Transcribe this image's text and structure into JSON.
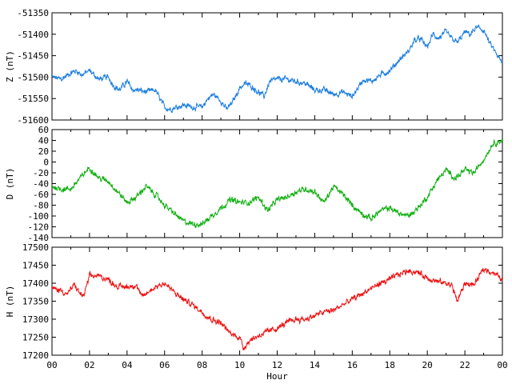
{
  "chart_data": [
    {
      "type": "line",
      "ylabel": "Z (nT)",
      "xlim": [
        0,
        24
      ],
      "ylim": [
        -51600,
        -51350
      ],
      "yticks": [
        -51350,
        -51400,
        -51450,
        -51500,
        -51550,
        -51600
      ],
      "x_tick_labels_shown": false,
      "series": [
        {
          "color": "#1f7fe0",
          "x": [
            0,
            0.5,
            1,
            1.3,
            1.6,
            2,
            2.5,
            3,
            3.3,
            3.6,
            4,
            4.3,
            4.6,
            5,
            5.5,
            5.8,
            6,
            6.3,
            6.6,
            7,
            7.5,
            8,
            8.3,
            8.6,
            9,
            9.3,
            9.6,
            10,
            10.3,
            10.6,
            11,
            11.3,
            11.6,
            12,
            12.5,
            13,
            13.5,
            14,
            14.5,
            15,
            15.5,
            16,
            16.3,
            16.6,
            17,
            17.5,
            18,
            18.5,
            19,
            19.3,
            19.6,
            20,
            20.3,
            20.6,
            21,
            21.3,
            21.6,
            22,
            22.3,
            22.6,
            23,
            23.3,
            23.6,
            24
          ],
          "y": [
            -51500,
            -51505,
            -51490,
            -51485,
            -51495,
            -51485,
            -51505,
            -51500,
            -51520,
            -51530,
            -51510,
            -51530,
            -51530,
            -51535,
            -51530,
            -51555,
            -51570,
            -51575,
            -51570,
            -51565,
            -51570,
            -51570,
            -51550,
            -51540,
            -51555,
            -51575,
            -51560,
            -51525,
            -51515,
            -51520,
            -51535,
            -51545,
            -51510,
            -51505,
            -51505,
            -51510,
            -51515,
            -51530,
            -51530,
            -51540,
            -51535,
            -51545,
            -51525,
            -51505,
            -51510,
            -51495,
            -51485,
            -51460,
            -51440,
            -51415,
            -51410,
            -51430,
            -51400,
            -51410,
            -51395,
            -51410,
            -51420,
            -51395,
            -51400,
            -51385,
            -51390,
            -51420,
            -51440,
            -51470
          ]
        }
      ]
    },
    {
      "type": "line",
      "ylabel": "D (nT)",
      "xlim": [
        0,
        24
      ],
      "ylim": [
        -140,
        60
      ],
      "yticks": [
        60,
        40,
        20,
        0,
        -20,
        -40,
        -60,
        -80,
        -100,
        -120,
        -140
      ],
      "x_tick_labels_shown": false,
      "series": [
        {
          "color": "#10b010",
          "x": [
            0,
            0.5,
            1,
            1.5,
            2,
            2.5,
            3,
            3.5,
            4,
            4.5,
            5,
            5.5,
            6,
            6.5,
            7,
            7.5,
            8,
            8.5,
            9,
            9.5,
            10,
            10.5,
            11,
            11.5,
            12,
            12.5,
            13,
            13.5,
            14,
            14.5,
            15,
            15.5,
            16,
            16.5,
            17,
            17.5,
            18,
            18.5,
            19,
            19.5,
            20,
            20.5,
            21,
            21.5,
            22,
            22.5,
            23,
            23.5,
            24
          ],
          "y": [
            -45,
            -50,
            -50,
            -30,
            -10,
            -30,
            -35,
            -55,
            -75,
            -65,
            -45,
            -60,
            -80,
            -95,
            -110,
            -115,
            -115,
            -100,
            -85,
            -70,
            -75,
            -75,
            -65,
            -90,
            -70,
            -65,
            -55,
            -50,
            -55,
            -75,
            -45,
            -60,
            -80,
            -95,
            -105,
            -90,
            -85,
            -95,
            -100,
            -85,
            -65,
            -35,
            -15,
            -30,
            -15,
            -20,
            5,
            35,
            40
          ]
        }
      ]
    },
    {
      "type": "line",
      "ylabel": "H (nT)",
      "xlabel": "Hour",
      "xlim": [
        0,
        24
      ],
      "ylim": [
        17200,
        17500
      ],
      "yticks": [
        17500,
        17450,
        17400,
        17350,
        17300,
        17250,
        17200
      ],
      "x_tick_labels": [
        "00",
        "02",
        "04",
        "06",
        "08",
        "10",
        "12",
        "14",
        "16",
        "18",
        "20",
        "22",
        "00"
      ],
      "series": [
        {
          "color": "#ee1010",
          "x": [
            0,
            0.5,
            0.8,
            1.2,
            1.5,
            1.7,
            2,
            2.5,
            3,
            3.5,
            4,
            4.5,
            4.8,
            5,
            5.5,
            6,
            6.5,
            7,
            7.5,
            8,
            8.5,
            9,
            9.5,
            10,
            10.2,
            10.5,
            11,
            11.5,
            12,
            12.5,
            13,
            13.5,
            14,
            14.5,
            15,
            15.5,
            16,
            16.5,
            17,
            17.5,
            18,
            18.5,
            19,
            19.5,
            20,
            20.5,
            21,
            21.3,
            21.6,
            22,
            22.5,
            23,
            23.5,
            24
          ],
          "y": [
            17385,
            17380,
            17370,
            17395,
            17370,
            17365,
            17420,
            17420,
            17410,
            17390,
            17390,
            17395,
            17360,
            17370,
            17390,
            17400,
            17375,
            17355,
            17340,
            17320,
            17300,
            17290,
            17260,
            17250,
            17220,
            17240,
            17255,
            17265,
            17275,
            17290,
            17300,
            17300,
            17310,
            17320,
            17325,
            17340,
            17355,
            17370,
            17385,
            17400,
            17410,
            17425,
            17435,
            17430,
            17415,
            17405,
            17400,
            17395,
            17350,
            17400,
            17395,
            17440,
            17430,
            17410
          ]
        }
      ]
    }
  ]
}
